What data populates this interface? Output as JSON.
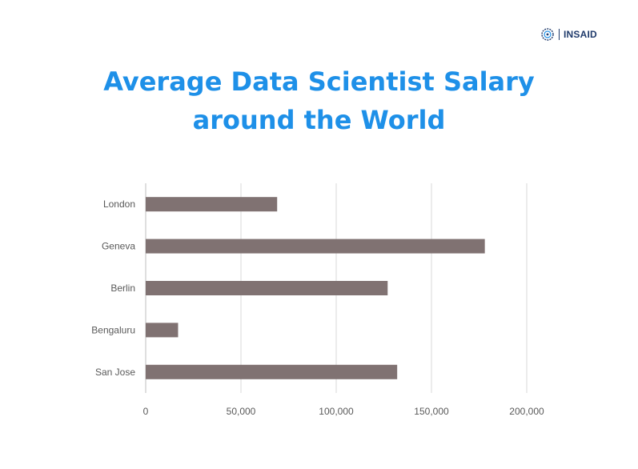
{
  "brand": {
    "logo_text": "INSAID",
    "accent_color": "#1f3a6b",
    "icon": "gear-brain-icon"
  },
  "chart_data": {
    "type": "bar",
    "orientation": "horizontal",
    "title_lines": [
      "Average Data Scientist Salary",
      "around the World"
    ],
    "title_color": "#1e90e8",
    "categories": [
      "London",
      "Geneva",
      "Berlin",
      "Bengaluru",
      "San Jose"
    ],
    "values": [
      69000,
      178000,
      127000,
      17000,
      132000
    ],
    "bar_color": "#807272",
    "xlim": [
      0,
      200000
    ],
    "x_ticks": [
      0,
      50000,
      100000,
      150000,
      200000
    ],
    "x_tick_labels": [
      "0",
      "50,000",
      "100,000",
      "150,000",
      "200,000"
    ],
    "grid": true,
    "legend": "none"
  }
}
